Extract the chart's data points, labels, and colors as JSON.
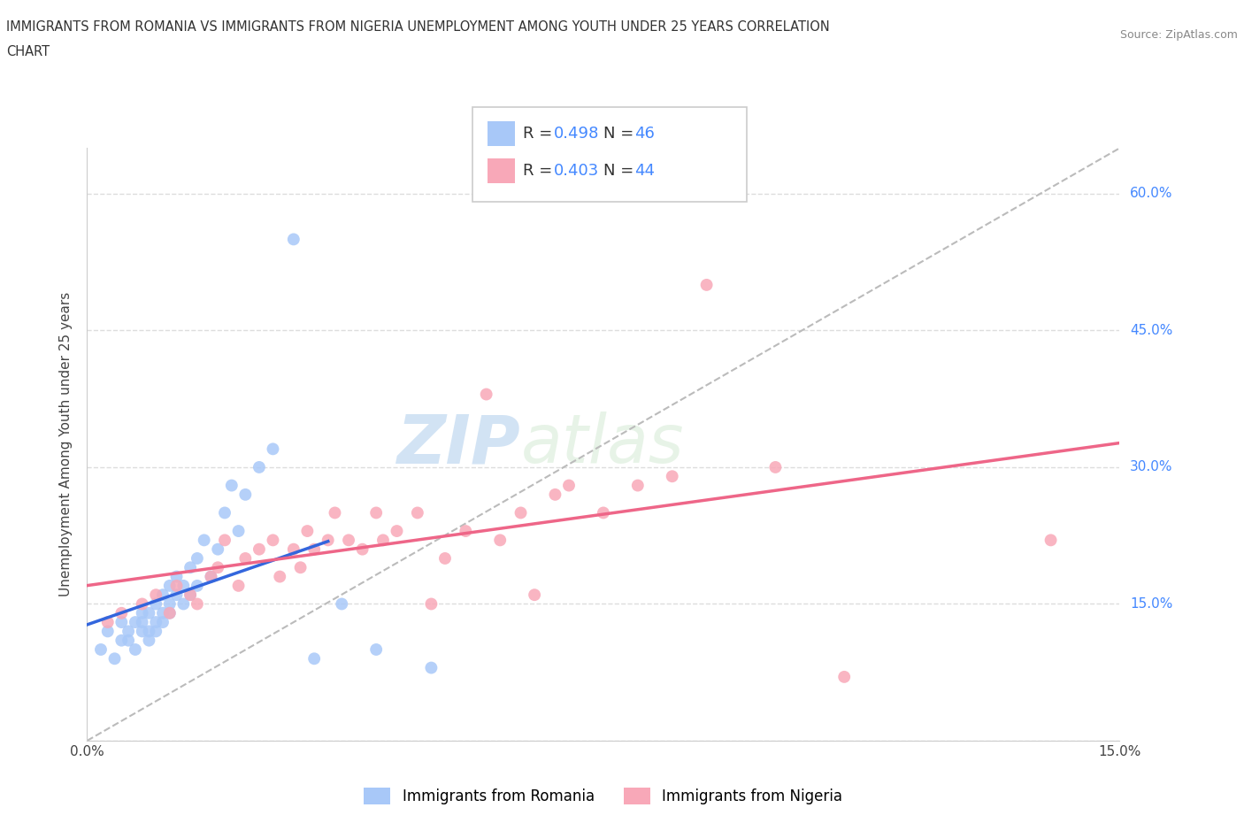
{
  "title_line1": "IMMIGRANTS FROM ROMANIA VS IMMIGRANTS FROM NIGERIA UNEMPLOYMENT AMONG YOUTH UNDER 25 YEARS CORRELATION",
  "title_line2": "CHART",
  "source": "Source: ZipAtlas.com",
  "ylabel": "Unemployment Among Youth under 25 years",
  "xlabel": "",
  "xlim": [
    0.0,
    0.15
  ],
  "ylim": [
    0.0,
    0.65
  ],
  "x_tick_positions": [
    0.0,
    0.03,
    0.06,
    0.09,
    0.12,
    0.15
  ],
  "x_tick_labels": [
    "0.0%",
    "",
    "",
    "",
    "",
    "15.0%"
  ],
  "y_tick_positions": [
    0.0,
    0.15,
    0.3,
    0.45,
    0.6
  ],
  "y_tick_labels_right": [
    "",
    "15.0%",
    "30.0%",
    "45.0%",
    "60.0%"
  ],
  "romania_color": "#a8c8f8",
  "nigeria_color": "#f8a8b8",
  "romania_line_color": "#3366dd",
  "nigeria_line_color": "#ee6688",
  "trend_line_color": "#bbbbbb",
  "grid_color": "#dddddd",
  "R_romania": 0.498,
  "N_romania": 46,
  "R_nigeria": 0.403,
  "N_nigeria": 44,
  "watermark_zip": "ZIP",
  "watermark_atlas": "atlas",
  "romania_scatter_x": [
    0.002,
    0.003,
    0.004,
    0.005,
    0.005,
    0.006,
    0.006,
    0.007,
    0.007,
    0.008,
    0.008,
    0.008,
    0.009,
    0.009,
    0.009,
    0.01,
    0.01,
    0.01,
    0.011,
    0.011,
    0.011,
    0.012,
    0.012,
    0.012,
    0.013,
    0.013,
    0.014,
    0.014,
    0.015,
    0.015,
    0.016,
    0.016,
    0.017,
    0.018,
    0.019,
    0.02,
    0.021,
    0.022,
    0.023,
    0.025,
    0.027,
    0.03,
    0.033,
    0.037,
    0.042,
    0.05
  ],
  "romania_scatter_y": [
    0.1,
    0.12,
    0.09,
    0.11,
    0.13,
    0.11,
    0.12,
    0.13,
    0.1,
    0.12,
    0.13,
    0.14,
    0.11,
    0.14,
    0.12,
    0.13,
    0.15,
    0.12,
    0.14,
    0.13,
    0.16,
    0.14,
    0.15,
    0.17,
    0.16,
    0.18,
    0.15,
    0.17,
    0.16,
    0.19,
    0.17,
    0.2,
    0.22,
    0.18,
    0.21,
    0.25,
    0.28,
    0.23,
    0.27,
    0.3,
    0.32,
    0.55,
    0.09,
    0.15,
    0.1,
    0.08
  ],
  "nigeria_scatter_x": [
    0.003,
    0.005,
    0.008,
    0.01,
    0.012,
    0.013,
    0.015,
    0.016,
    0.018,
    0.019,
    0.02,
    0.022,
    0.023,
    0.025,
    0.027,
    0.028,
    0.03,
    0.031,
    0.032,
    0.033,
    0.035,
    0.036,
    0.038,
    0.04,
    0.042,
    0.043,
    0.045,
    0.048,
    0.05,
    0.052,
    0.055,
    0.058,
    0.06,
    0.063,
    0.065,
    0.068,
    0.07,
    0.075,
    0.08,
    0.085,
    0.09,
    0.1,
    0.11,
    0.14
  ],
  "nigeria_scatter_y": [
    0.13,
    0.14,
    0.15,
    0.16,
    0.14,
    0.17,
    0.16,
    0.15,
    0.18,
    0.19,
    0.22,
    0.17,
    0.2,
    0.21,
    0.22,
    0.18,
    0.21,
    0.19,
    0.23,
    0.21,
    0.22,
    0.25,
    0.22,
    0.21,
    0.25,
    0.22,
    0.23,
    0.25,
    0.15,
    0.2,
    0.23,
    0.38,
    0.22,
    0.25,
    0.16,
    0.27,
    0.28,
    0.25,
    0.28,
    0.29,
    0.5,
    0.3,
    0.07,
    0.22
  ]
}
